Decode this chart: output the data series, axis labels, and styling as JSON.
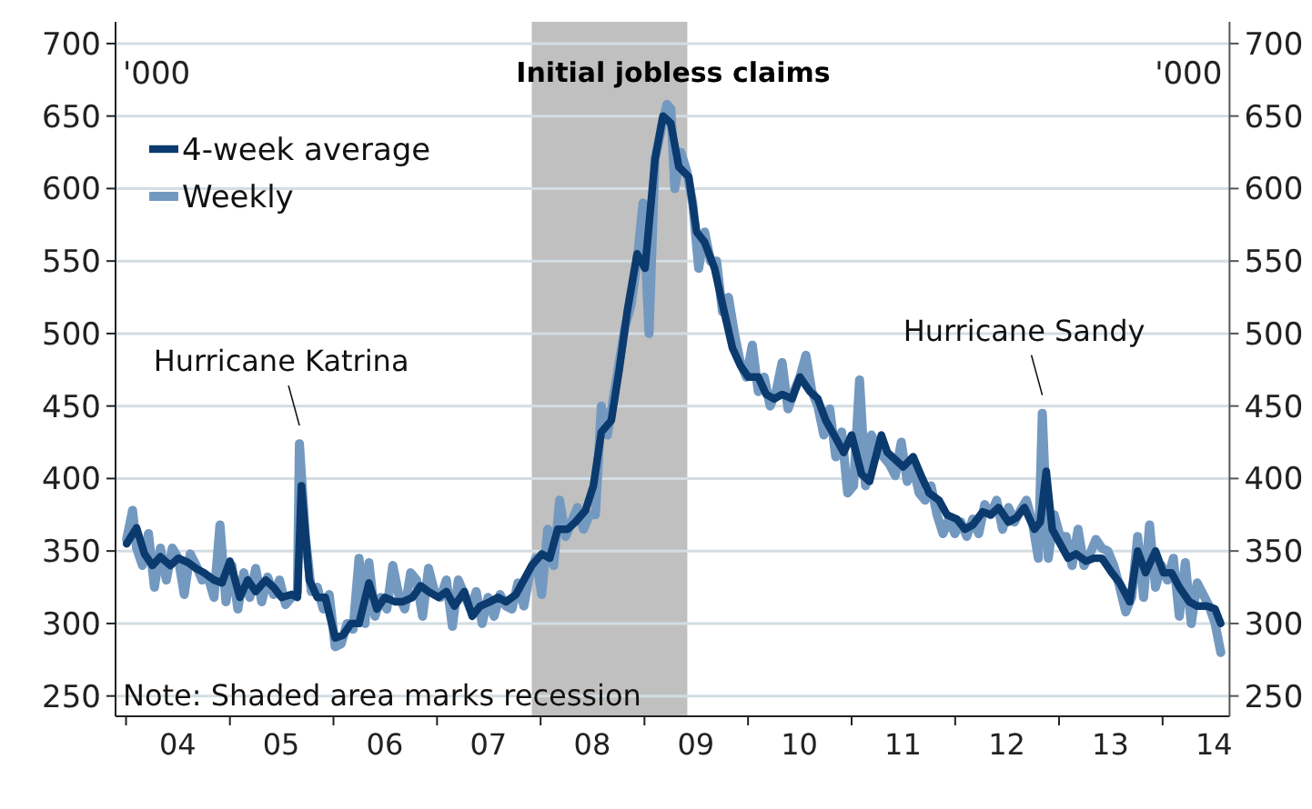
{
  "chart_data": {
    "type": "line",
    "title": "Initial jobless claims",
    "ylabel": "'000",
    "y2label": "'000",
    "annotations": [
      {
        "text": "Hurricane Katrina",
        "x": "2005-09-03",
        "y": 424
      },
      {
        "text": "Hurricane Sandy",
        "x": "2012-11-03",
        "y": 445
      },
      "Note: Shaded area marks recession"
    ],
    "bands": [
      {
        "axis": "x",
        "from": "2007-12-01",
        "to": "2009-06-01",
        "color": "#c0c0c0"
      }
    ],
    "xlim": [
      "2003-11-25",
      "2014-08-25"
    ],
    "xticks": [
      {
        "value": "2004-01-01",
        "label": null
      },
      {
        "value": "2005-01-01",
        "label": null
      },
      {
        "value": "2006-01-01",
        "label": null
      },
      {
        "value": "2007-01-01",
        "label": null
      },
      {
        "value": "2008-01-01",
        "label": null
      },
      {
        "value": "2009-01-01",
        "label": null
      },
      {
        "value": "2010-01-01",
        "label": null
      },
      {
        "value": "2011-01-01",
        "label": null
      },
      {
        "value": "2012-01-01",
        "label": null
      },
      {
        "value": "2013-01-01",
        "label": null
      },
      {
        "value": "2014-01-01",
        "label": null
      },
      {
        "value": "2004-07-01",
        "label": "04"
      },
      {
        "value": "2005-07-01",
        "label": "05"
      },
      {
        "value": "2006-07-01",
        "label": "06"
      },
      {
        "value": "2007-07-01",
        "label": "07"
      },
      {
        "value": "2008-07-01",
        "label": "08"
      },
      {
        "value": "2009-07-01",
        "label": "09"
      },
      {
        "value": "2010-07-01",
        "label": "10"
      },
      {
        "value": "2011-07-01",
        "label": "11"
      },
      {
        "value": "2012-07-01",
        "label": "12"
      },
      {
        "value": "2013-07-01",
        "label": "13"
      },
      {
        "value": "2014-07-01",
        "label": "14"
      }
    ],
    "ylim": [
      236,
      715
    ],
    "yticks": [
      250,
      300,
      350,
      400,
      450,
      500,
      550,
      600,
      650,
      700
    ],
    "y2lim": [
      236,
      715
    ],
    "y2ticks": [
      250,
      300,
      350,
      400,
      450,
      500,
      550,
      600,
      650,
      700
    ],
    "grid": "y",
    "legend": "top left",
    "line_style": "solid",
    "marker": "none",
    "series": [
      {
        "name": "Weekly",
        "color": "#7399c0",
        "x": [
          "2004-01-03",
          "2004-01-24",
          "2004-02-07",
          "2004-02-28",
          "2004-03-20",
          "2004-04-10",
          "2004-05-01",
          "2004-05-22",
          "2004-06-12",
          "2004-07-03",
          "2004-07-24",
          "2004-08-14",
          "2004-09-04",
          "2004-09-25",
          "2004-10-16",
          "2004-11-06",
          "2004-11-27",
          "2004-12-18",
          "2005-01-08",
          "2005-01-29",
          "2005-02-19",
          "2005-03-12",
          "2005-04-02",
          "2005-04-23",
          "2005-05-14",
          "2005-06-04",
          "2005-06-25",
          "2005-07-16",
          "2005-08-06",
          "2005-08-27",
          "2005-09-03",
          "2005-09-24",
          "2005-10-15",
          "2005-11-05",
          "2005-11-26",
          "2005-12-17",
          "2006-01-07",
          "2006-01-28",
          "2006-02-18",
          "2006-03-11",
          "2006-04-01",
          "2006-04-22",
          "2006-05-06",
          "2006-05-27",
          "2006-06-17",
          "2006-07-08",
          "2006-07-29",
          "2006-08-19",
          "2006-09-09",
          "2006-09-30",
          "2006-10-21",
          "2006-11-11",
          "2006-12-02",
          "2006-12-23",
          "2007-01-13",
          "2007-02-03",
          "2007-02-24",
          "2007-03-17",
          "2007-04-07",
          "2007-04-28",
          "2007-05-19",
          "2007-06-09",
          "2007-06-30",
          "2007-07-21",
          "2007-08-11",
          "2007-09-01",
          "2007-09-22",
          "2007-10-13",
          "2007-11-03",
          "2007-11-24",
          "2007-12-15",
          "2008-01-05",
          "2008-01-26",
          "2008-02-16",
          "2008-03-08",
          "2008-03-29",
          "2008-04-19",
          "2008-05-10",
          "2008-05-31",
          "2008-06-21",
          "2008-07-12",
          "2008-08-02",
          "2008-08-23",
          "2008-09-13",
          "2008-10-04",
          "2008-10-25",
          "2008-11-15",
          "2008-12-06",
          "2008-12-27",
          "2009-01-17",
          "2009-02-07",
          "2009-02-28",
          "2009-03-21",
          "2009-04-04",
          "2009-04-18",
          "2009-05-09",
          "2009-05-30",
          "2009-06-20",
          "2009-07-11",
          "2009-08-01",
          "2009-08-22",
          "2009-09-12",
          "2009-10-03",
          "2009-10-24",
          "2009-11-14",
          "2009-12-05",
          "2009-12-26",
          "2010-01-16",
          "2010-02-06",
          "2010-02-27",
          "2010-03-20",
          "2010-04-10",
          "2010-05-01",
          "2010-05-22",
          "2010-06-12",
          "2010-07-03",
          "2010-07-24",
          "2010-08-14",
          "2010-09-04",
          "2010-09-25",
          "2010-10-16",
          "2010-11-06",
          "2010-11-27",
          "2010-12-18",
          "2011-01-08",
          "2011-01-29",
          "2011-02-19",
          "2011-03-12",
          "2011-04-02",
          "2011-04-23",
          "2011-05-14",
          "2011-06-04",
          "2011-06-25",
          "2011-07-16",
          "2011-08-06",
          "2011-08-27",
          "2011-09-17",
          "2011-10-08",
          "2011-10-29",
          "2011-11-19",
          "2011-12-10",
          "2011-12-31",
          "2012-01-21",
          "2012-02-11",
          "2012-03-03",
          "2012-03-24",
          "2012-04-14",
          "2012-05-05",
          "2012-05-26",
          "2012-06-16",
          "2012-07-07",
          "2012-07-28",
          "2012-08-18",
          "2012-09-08",
          "2012-09-29",
          "2012-10-20",
          "2012-11-03",
          "2012-11-24",
          "2012-12-15",
          "2013-01-05",
          "2013-01-26",
          "2013-02-16",
          "2013-03-09",
          "2013-03-30",
          "2013-04-20",
          "2013-05-11",
          "2013-06-01",
          "2013-06-22",
          "2013-07-13",
          "2013-08-03",
          "2013-08-24",
          "2013-09-14",
          "2013-10-05",
          "2013-10-26",
          "2013-11-16",
          "2013-12-07",
          "2013-12-28",
          "2014-01-18",
          "2014-02-08",
          "2014-03-01",
          "2014-03-22",
          "2014-04-12",
          "2014-05-03",
          "2014-05-24",
          "2014-06-14",
          "2014-07-05",
          "2014-07-25"
        ],
        "values": [
          358,
          378,
          352,
          340,
          362,
          325,
          352,
          330,
          352,
          345,
          320,
          348,
          340,
          330,
          332,
          318,
          368,
          315,
          340,
          310,
          335,
          318,
          338,
          315,
          332,
          320,
          330,
          313,
          318,
          322,
          424,
          360,
          322,
          325,
          310,
          320,
          284,
          286,
          300,
          296,
          345,
          300,
          342,
          305,
          318,
          310,
          340,
          320,
          310,
          335,
          330,
          305,
          338,
          322,
          318,
          330,
          298,
          330,
          320,
          310,
          322,
          300,
          318,
          305,
          320,
          312,
          310,
          328,
          312,
          335,
          345,
          320,
          365,
          340,
          385,
          360,
          370,
          380,
          365,
          375,
          375,
          450,
          430,
          455,
          480,
          505,
          520,
          550,
          590,
          500,
          620,
          640,
          658,
          655,
          600,
          625,
          612,
          590,
          545,
          570,
          550,
          550,
          515,
          525,
          500,
          480,
          470,
          492,
          460,
          470,
          450,
          460,
          480,
          448,
          460,
          470,
          485,
          460,
          450,
          430,
          448,
          415,
          432,
          390,
          395,
          468,
          395,
          430,
          420,
          415,
          410,
          402,
          425,
          398,
          408,
          390,
          385,
          395,
          375,
          362,
          372,
          362,
          370,
          360,
          372,
          362,
          382,
          375,
          385,
          365,
          380,
          370,
          378,
          385,
          370,
          345,
          445,
          345,
          375,
          360,
          360,
          340,
          365,
          340,
          348,
          358,
          352,
          350,
          340,
          325,
          308,
          318,
          360,
          318,
          368,
          325,
          340,
          330,
          345,
          305,
          342,
          300,
          328,
          320,
          312,
          300,
          280
        ]
      },
      {
        "name": "4-week average",
        "color": "#0b3a6e",
        "x": [
          "2004-01-03",
          "2004-02-07",
          "2004-03-06",
          "2004-04-03",
          "2004-05-01",
          "2004-06-05",
          "2004-07-03",
          "2004-08-07",
          "2004-09-04",
          "2004-10-02",
          "2004-11-06",
          "2004-12-04",
          "2005-01-01",
          "2005-02-05",
          "2005-03-05",
          "2005-04-02",
          "2005-05-07",
          "2005-06-04",
          "2005-07-02",
          "2005-08-06",
          "2005-08-27",
          "2005-09-10",
          "2005-10-08",
          "2005-11-05",
          "2005-12-03",
          "2006-01-07",
          "2006-02-04",
          "2006-03-04",
          "2006-04-01",
          "2006-05-06",
          "2006-06-03",
          "2006-07-01",
          "2006-08-05",
          "2006-09-02",
          "2006-10-07",
          "2006-11-04",
          "2006-12-02",
          "2007-01-06",
          "2007-02-03",
          "2007-03-03",
          "2007-04-07",
          "2007-05-05",
          "2007-06-02",
          "2007-07-07",
          "2007-08-04",
          "2007-09-01",
          "2007-10-06",
          "2007-11-03",
          "2007-12-01",
          "2008-01-05",
          "2008-02-02",
          "2008-03-01",
          "2008-04-05",
          "2008-05-03",
          "2008-06-07",
          "2008-07-05",
          "2008-08-02",
          "2008-09-06",
          "2008-10-04",
          "2008-11-01",
          "2008-12-06",
          "2009-01-03",
          "2009-02-07",
          "2009-03-07",
          "2009-04-04",
          "2009-05-02",
          "2009-06-06",
          "2009-07-04",
          "2009-08-01",
          "2009-09-05",
          "2009-10-03",
          "2009-11-07",
          "2009-12-05",
          "2010-01-02",
          "2010-02-06",
          "2010-03-06",
          "2010-04-03",
          "2010-05-01",
          "2010-06-05",
          "2010-07-03",
          "2010-08-07",
          "2010-09-04",
          "2010-10-02",
          "2010-11-06",
          "2010-12-04",
          "2011-01-01",
          "2011-02-05",
          "2011-03-05",
          "2011-04-16",
          "2011-05-07",
          "2011-06-04",
          "2011-07-02",
          "2011-08-06",
          "2011-09-03",
          "2011-10-01",
          "2011-11-05",
          "2011-12-03",
          "2012-01-07",
          "2012-02-04",
          "2012-03-03",
          "2012-04-07",
          "2012-05-05",
          "2012-06-02",
          "2012-07-07",
          "2012-08-04",
          "2012-09-01",
          "2012-10-06",
          "2012-10-27",
          "2012-11-17",
          "2012-12-08",
          "2013-01-05",
          "2013-02-02",
          "2013-03-02",
          "2013-04-06",
          "2013-05-04",
          "2013-06-01",
          "2013-07-06",
          "2013-08-03",
          "2013-09-07",
          "2013-10-05",
          "2013-11-02",
          "2013-12-07",
          "2014-01-04",
          "2014-02-01",
          "2014-03-01",
          "2014-04-05",
          "2014-05-03",
          "2014-06-07",
          "2014-07-05",
          "2014-07-25"
        ],
        "values": [
          355,
          366,
          348,
          340,
          346,
          340,
          345,
          342,
          338,
          335,
          330,
          328,
          343,
          318,
          330,
          322,
          330,
          325,
          318,
          320,
          318,
          395,
          330,
          318,
          318,
          290,
          292,
          300,
          300,
          328,
          310,
          318,
          315,
          315,
          318,
          326,
          322,
          318,
          322,
          312,
          322,
          305,
          312,
          315,
          318,
          315,
          320,
          330,
          340,
          348,
          345,
          365,
          365,
          370,
          378,
          395,
          432,
          440,
          475,
          515,
          555,
          545,
          620,
          650,
          645,
          615,
          608,
          570,
          563,
          545,
          520,
          490,
          478,
          470,
          470,
          458,
          455,
          458,
          455,
          470,
          460,
          455,
          440,
          428,
          418,
          430,
          403,
          398,
          430,
          418,
          413,
          408,
          415,
          402,
          390,
          385,
          375,
          372,
          365,
          368,
          377,
          375,
          380,
          370,
          373,
          380,
          365,
          370,
          405,
          365,
          355,
          345,
          348,
          343,
          345,
          345,
          335,
          328,
          315,
          350,
          335,
          350,
          335,
          335,
          325,
          315,
          312,
          312,
          310,
          300
        ]
      }
    ]
  }
}
